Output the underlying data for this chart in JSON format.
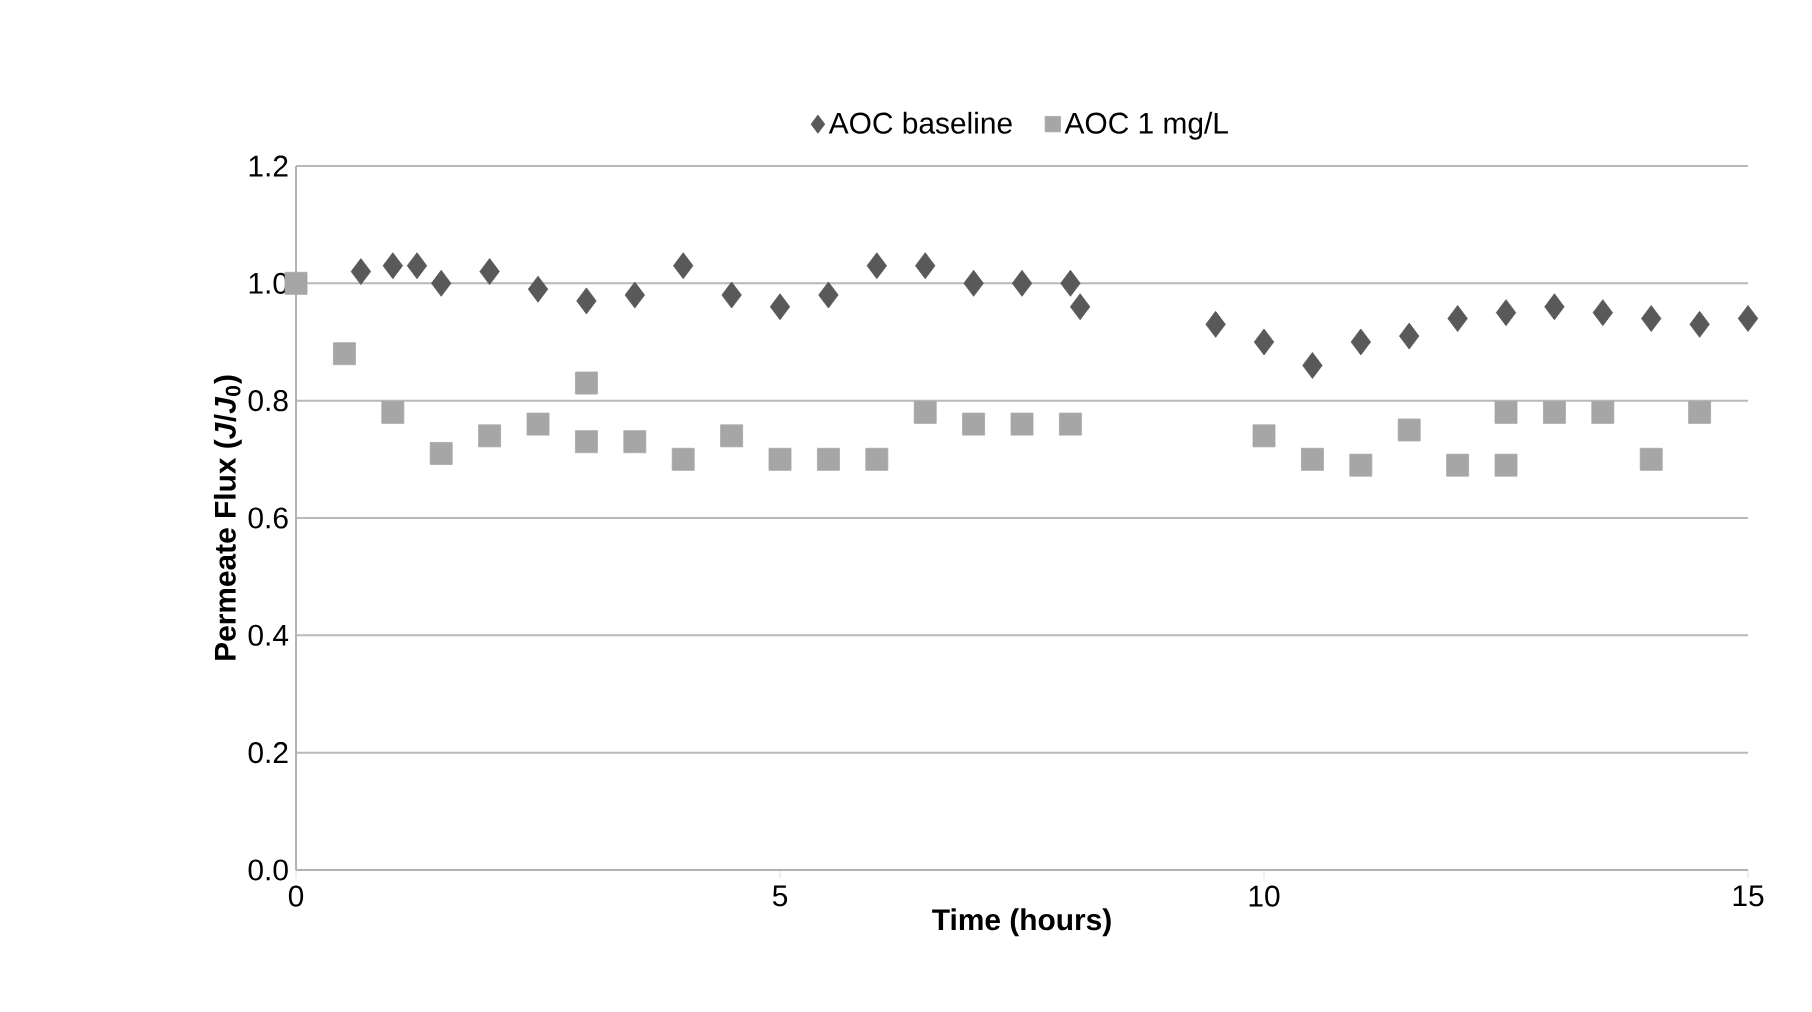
{
  "chart_data": {
    "type": "scatter",
    "xlabel": "Time (hours)",
    "ylabel": "Permeate Flux (*J*/*J*$_{0}$)",
    "xlim": [
      0,
      15
    ],
    "xticks": [
      0,
      5,
      10,
      15
    ],
    "ylim": [
      0,
      1.2
    ],
    "yticks": [
      {
        "value": 0,
        "label": "0.0"
      },
      {
        "value": 0.2,
        "label": "0.2"
      },
      {
        "value": 0.4,
        "label": "0.4"
      },
      {
        "value": 0.6,
        "label": "0.6"
      },
      {
        "value": 0.8,
        "label": "0.8"
      },
      {
        "value": 1.0,
        "label": "1.0"
      },
      {
        "value": 1.2,
        "label": "1.2"
      }
    ],
    "grid": "y",
    "legend": "top",
    "series": [
      {
        "name": "AOC baseline",
        "color": "#595959",
        "marker": "diamond",
        "x": [
          0.67,
          1,
          1.25,
          1.5,
          2,
          2.5,
          3,
          3.5,
          4,
          4.5,
          5,
          5.5,
          6,
          6.5,
          7,
          7.5,
          8,
          8.1,
          9.5,
          10,
          10.5,
          11,
          11.5,
          12,
          12.5,
          13,
          13.5,
          14,
          14.5,
          15
        ],
        "values": [
          1.02,
          1.03,
          1.03,
          1.0,
          1.02,
          0.99,
          0.97,
          0.98,
          1.03,
          0.98,
          0.96,
          0.98,
          1.03,
          1.03,
          1.0,
          1.0,
          1.0,
          0.96,
          0.93,
          0.9,
          0.86,
          0.9,
          0.91,
          0.94,
          0.95,
          0.96,
          0.95,
          0.94,
          0.93,
          0.94
        ]
      },
      {
        "name": "AOC 1 mg/L",
        "color": "#a6a6a6",
        "marker": "square",
        "x": [
          0,
          0.5,
          1,
          1.5,
          2,
          2.5,
          3,
          3,
          3.5,
          4,
          4.5,
          5,
          5.5,
          6,
          6.5,
          7,
          7.5,
          8,
          10,
          10.5,
          11,
          11.5,
          12,
          12.5,
          12.5,
          13,
          13.5,
          14,
          14.5
        ],
        "values": [
          1.0,
          0.88,
          0.78,
          0.71,
          0.74,
          0.76,
          0.83,
          0.73,
          0.73,
          0.7,
          0.74,
          0.7,
          0.7,
          0.7,
          0.78,
          0.76,
          0.76,
          0.76,
          0.74,
          0.7,
          0.69,
          0.75,
          0.69,
          0.69,
          0.78,
          0.78,
          0.78,
          0.7,
          0.78
        ]
      }
    ]
  }
}
